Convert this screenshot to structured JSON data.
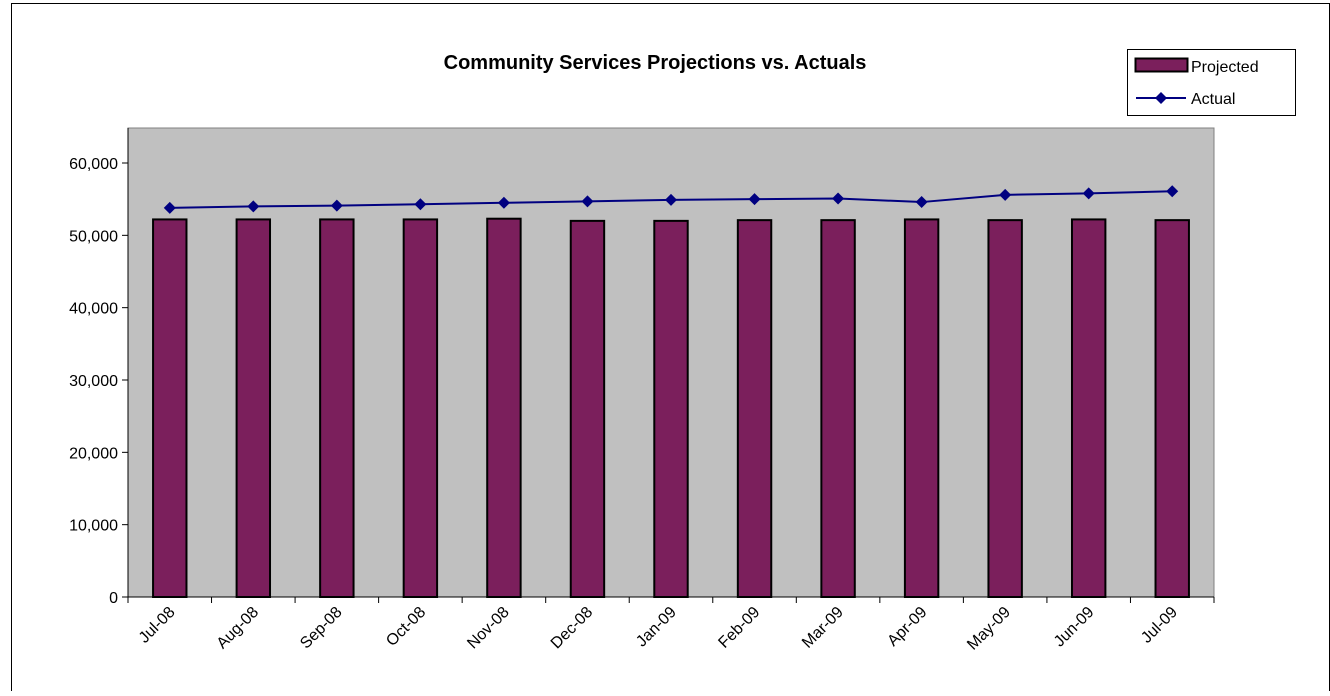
{
  "chart_data": {
    "type": "bar",
    "title": "Community Services Projections vs. Actuals",
    "xlabel": "",
    "ylabel": "",
    "categories": [
      "Jul-08",
      "Aug-08",
      "Sep-08",
      "Oct-08",
      "Nov-08",
      "Dec-08",
      "Jan-09",
      "Feb-09",
      "Mar-09",
      "Apr-09",
      "May-09",
      "Jun-09",
      "Jul-09"
    ],
    "series": [
      {
        "name": "Projected",
        "kind": "bar",
        "color": "#7b1f5c",
        "values": [
          52200,
          52200,
          52200,
          52200,
          52300,
          52000,
          52000,
          52100,
          52100,
          52200,
          52100,
          52200,
          52100
        ]
      },
      {
        "name": "Actual",
        "kind": "line",
        "color": "#000080",
        "marker": "diamond",
        "values": [
          53800,
          54000,
          54100,
          54300,
          54500,
          54700,
          54900,
          55000,
          55100,
          54600,
          55600,
          55800,
          56100
        ]
      }
    ],
    "ylim": [
      0,
      60000
    ],
    "yticks": [
      0,
      10000,
      20000,
      30000,
      40000,
      50000,
      60000
    ],
    "ytick_labels": [
      "0",
      "10,000",
      "20,000",
      "30,000",
      "40,000",
      "50,000",
      "60,000"
    ],
    "grid": false,
    "legend_position": "top-right",
    "plot_background": "#c0c0c0"
  }
}
